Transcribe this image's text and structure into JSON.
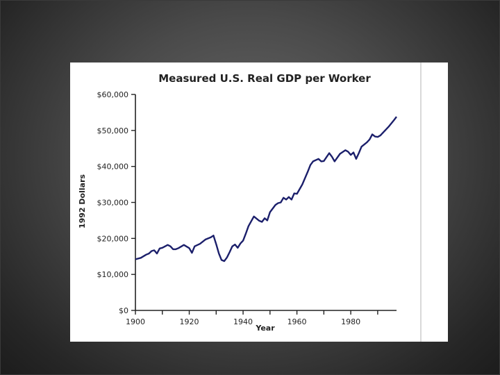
{
  "chart_data": {
    "type": "line",
    "title": "Measured U.S. Real GDP per Worker",
    "xlabel": "Year",
    "ylabel": "1992 Dollars",
    "xlim": [
      1900,
      1997
    ],
    "ylim": [
      0,
      60000
    ],
    "x_ticks": [
      1900,
      1920,
      1940,
      1960,
      1980
    ],
    "y_ticks": [
      "$0",
      "$10,000",
      "$20,000",
      "$30,000",
      "$40,000",
      "$50,000",
      "$60,000"
    ],
    "grid": false,
    "colors": {
      "line": "#1b1f6b"
    },
    "series": [
      {
        "x": [
          1900,
          1902,
          1904,
          1905,
          1906,
          1907,
          1908,
          1909,
          1910,
          1912,
          1913,
          1914,
          1915,
          1916,
          1918,
          1920,
          1921,
          1922,
          1924,
          1926,
          1928,
          1929,
          1930,
          1931,
          1932,
          1933,
          1934,
          1935,
          1936,
          1937,
          1938,
          1939,
          1940,
          1941,
          1942,
          1944,
          1946,
          1947,
          1948,
          1949,
          1950,
          1952,
          1953,
          1954,
          1955,
          1956,
          1957,
          1958,
          1959,
          1960,
          1962,
          1964,
          1965,
          1966,
          1968,
          1969,
          1970,
          1971,
          1972,
          1973,
          1974,
          1976,
          1978,
          1979,
          1980,
          1981,
          1982,
          1983,
          1984,
          1986,
          1987,
          1988,
          1989,
          1990,
          1991,
          1992,
          1994,
          1996,
          1997
        ],
        "y": [
          14200,
          14600,
          15500,
          15800,
          16500,
          16700,
          15800,
          17200,
          17400,
          18200,
          17800,
          17000,
          17000,
          17300,
          18200,
          17300,
          16000,
          17800,
          18500,
          19700,
          20300,
          20800,
          18400,
          15800,
          14000,
          13700,
          14700,
          16200,
          17800,
          18300,
          17400,
          18600,
          19400,
          21300,
          23400,
          26100,
          24900,
          24600,
          25600,
          25000,
          27300,
          29300,
          29800,
          30000,
          31300,
          30800,
          31500,
          30800,
          32500,
          32400,
          35000,
          38500,
          40400,
          41400,
          42100,
          41400,
          41500,
          42600,
          43700,
          42700,
          41400,
          43500,
          44500,
          44100,
          43200,
          43900,
          42100,
          43700,
          45500,
          46700,
          47500,
          48900,
          48300,
          48200,
          48600,
          49400,
          51000,
          52800,
          53800
        ]
      }
    ]
  }
}
